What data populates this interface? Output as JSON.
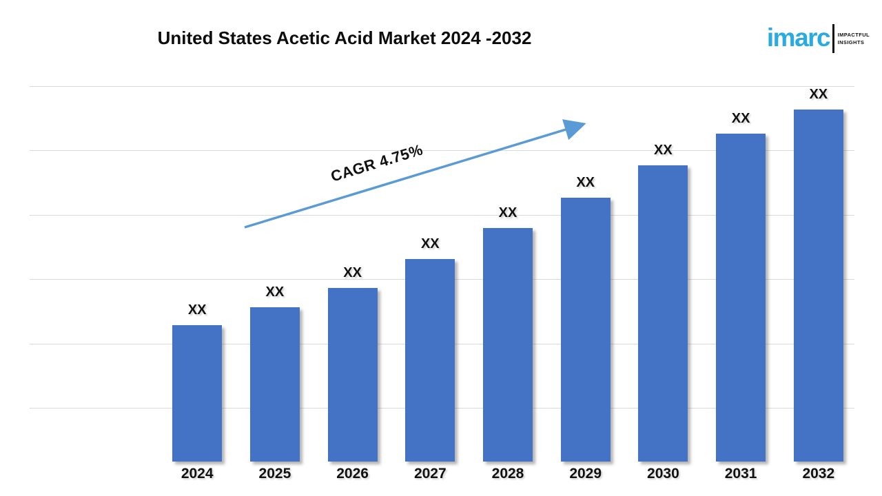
{
  "header": {
    "title": "United States Acetic Acid Market 2024 -2032"
  },
  "logo": {
    "brand": "imarc",
    "tagline_line1": "IMPACTFUL",
    "tagline_line2": "INSIGHTS",
    "brand_color": "#29ABE2"
  },
  "annotation": {
    "cagr_label": "CAGR 4.75%",
    "arrow_color": "#5B9BD5"
  },
  "chart_data": {
    "type": "bar",
    "title": "United States Acetic Acid Market 2024 -2032",
    "categories": [
      "2024",
      "2025",
      "2026",
      "2027",
      "2028",
      "2029",
      "2030",
      "2031",
      "2032"
    ],
    "values": [
      "XX",
      "XX",
      "XX",
      "XX",
      "XX",
      "XX",
      "XX",
      "XX",
      "XX"
    ],
    "values_masked": true,
    "relative_heights": [
      0.363,
      0.411,
      0.462,
      0.539,
      0.622,
      0.703,
      0.789,
      0.873,
      0.938
    ],
    "bar_color": "#4472C4",
    "gridline_color": "#D9D9D9",
    "gridline_count": 6,
    "xlabel": "",
    "ylabel": "",
    "y_axis_labels": "none",
    "legend": "none",
    "annotation": "CAGR 4.75%"
  }
}
